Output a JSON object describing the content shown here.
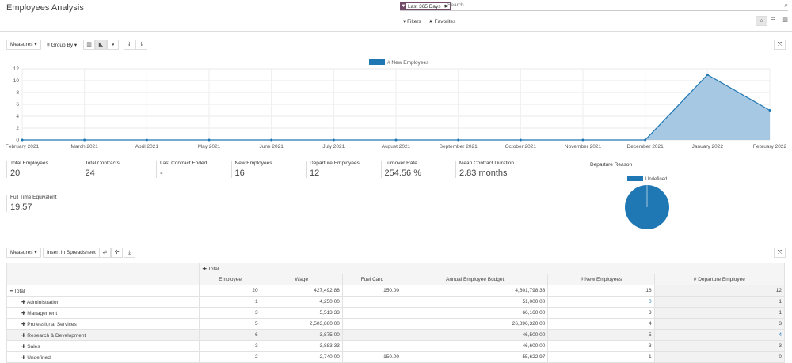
{
  "header": {
    "title": "Employees Analysis",
    "facet": "Last 365 Days",
    "search_placeholder": "Search...",
    "filters": "Filters",
    "favorites": "Favorites"
  },
  "toolbar": {
    "measures": "Measures",
    "group_by": "Group By"
  },
  "chart_data": {
    "type": "line",
    "filled": true,
    "legend": "# New Employees",
    "legend_position": "top",
    "x": [
      "February 2021",
      "March 2021",
      "April 2021",
      "May 2021",
      "June 2021",
      "July 2021",
      "August 2021",
      "September 2021",
      "October 2021",
      "November 2021",
      "December 2021",
      "January 2022",
      "February 2022"
    ],
    "series": [
      {
        "name": "# New Employees",
        "values": [
          0,
          0,
          0,
          0,
          0,
          0,
          0,
          0,
          0,
          0,
          0,
          11,
          5
        ]
      }
    ],
    "ylim": [
      0,
      12
    ],
    "yticks": [
      0,
      2,
      4,
      6,
      8,
      10,
      12
    ],
    "grid": true,
    "color": "#1f77b4"
  },
  "kpis": [
    {
      "label": "Total Employees",
      "value": "20"
    },
    {
      "label": "Total Contracts",
      "value": "24"
    },
    {
      "label": "Last Contract Ended",
      "value": "-"
    },
    {
      "label": "New Employees",
      "value": "16"
    },
    {
      "label": "Departure Employees",
      "value": "12"
    },
    {
      "label": "Turnover Rate",
      "value": "254.56 %"
    },
    {
      "label": "Mean Contract Duration",
      "value": "2.83 months"
    },
    {
      "label": "Full Time Equivalent",
      "value": "19.57"
    }
  ],
  "departure": {
    "title": "Departure Reason",
    "legend": "Undefined",
    "slices": [
      {
        "label": "Undefined",
        "value": 100
      }
    ],
    "color": "#1f77b4"
  },
  "pivot": {
    "measures": "Measures",
    "insert": "Insert in Spreadsheet",
    "col_header": "Total",
    "columns": [
      "Employee",
      "Wage",
      "Fuel Card",
      "Annual Employee Budget",
      "# New Employees",
      "# Departure Employee"
    ],
    "rows": [
      {
        "label": "Total",
        "cells": [
          "20",
          "427,492.88",
          "150.00",
          "4,601,798.38",
          "16",
          "12"
        ]
      },
      {
        "label": "Administration",
        "cells": [
          "1",
          "4,250.00",
          "",
          "51,000.00",
          "0",
          "1"
        ]
      },
      {
        "label": "Management",
        "cells": [
          "3",
          "5,513.33",
          "",
          "66,160.00",
          "3",
          "1"
        ]
      },
      {
        "label": "Professional Services",
        "cells": [
          "5",
          "2,503,860.00",
          "",
          "26,896,320.00",
          "4",
          "3"
        ]
      },
      {
        "label": "Research & Development",
        "cells": [
          "6",
          "3,875.00",
          "",
          "46,500.00",
          "5",
          "4"
        ]
      },
      {
        "label": "Sales",
        "cells": [
          "3",
          "3,883.33",
          "",
          "46,600.00",
          "3",
          "3"
        ]
      },
      {
        "label": "Undefined",
        "cells": [
          "2",
          "2,740.00",
          "150.00",
          "55,622.97",
          "1",
          "0"
        ]
      }
    ]
  }
}
